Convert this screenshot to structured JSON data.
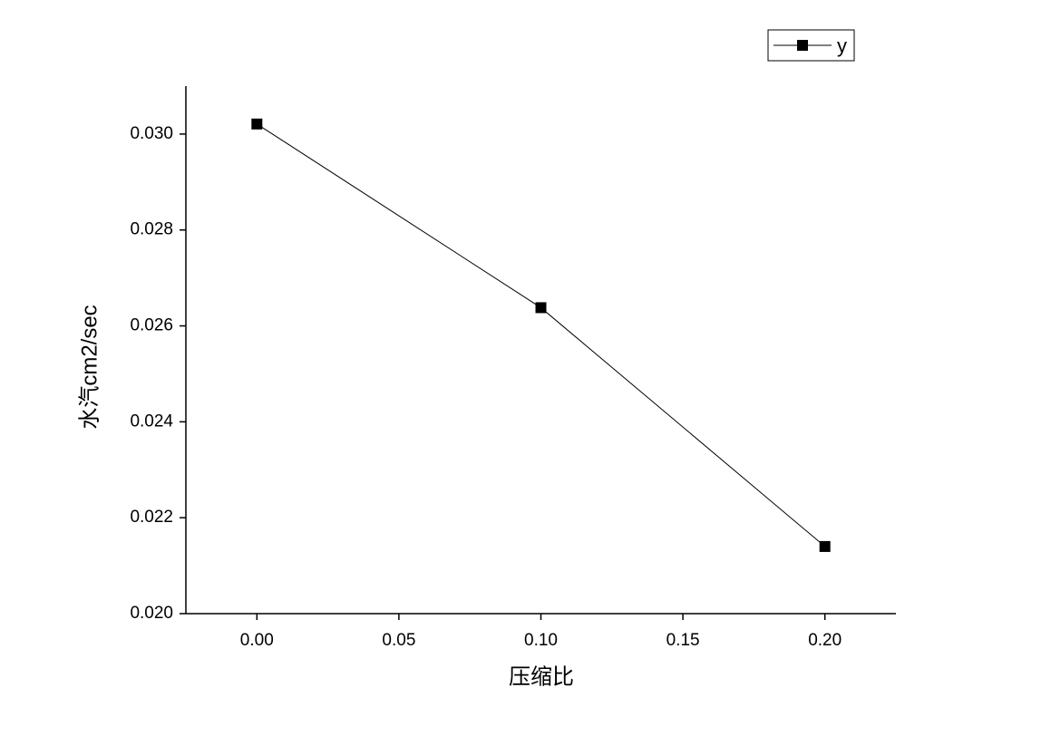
{
  "chart_data": {
    "type": "line",
    "x_label": "压缩比",
    "y_label": "水汽cm2/sec",
    "x": [
      0.0,
      0.1,
      0.2
    ],
    "series": [
      {
        "name": "y",
        "color": "#000000",
        "values": [
          0.03021,
          0.02638,
          0.0214
        ]
      }
    ],
    "xlim": [
      -0.025,
      0.225
    ],
    "ylim": [
      0.02,
      0.031
    ],
    "xticks": [
      {
        "value": 0,
        "label": "0.00"
      },
      {
        "value": 0.05,
        "label": "0.05"
      },
      {
        "value": 0.1,
        "label": "0.10"
      },
      {
        "value": 0.15,
        "label": "0.15"
      },
      {
        "value": 0.2,
        "label": "0.20"
      }
    ],
    "yticks": [
      {
        "value": 0.02,
        "label": "0.020"
      },
      {
        "value": 0.022,
        "label": "0.022"
      },
      {
        "value": 0.024,
        "label": "0.024"
      },
      {
        "value": 0.026,
        "label": "0.026"
      },
      {
        "value": 0.028,
        "label": "0.028"
      },
      {
        "value": 0.03,
        "label": "0.030"
      }
    ],
    "legend": "top-right"
  }
}
